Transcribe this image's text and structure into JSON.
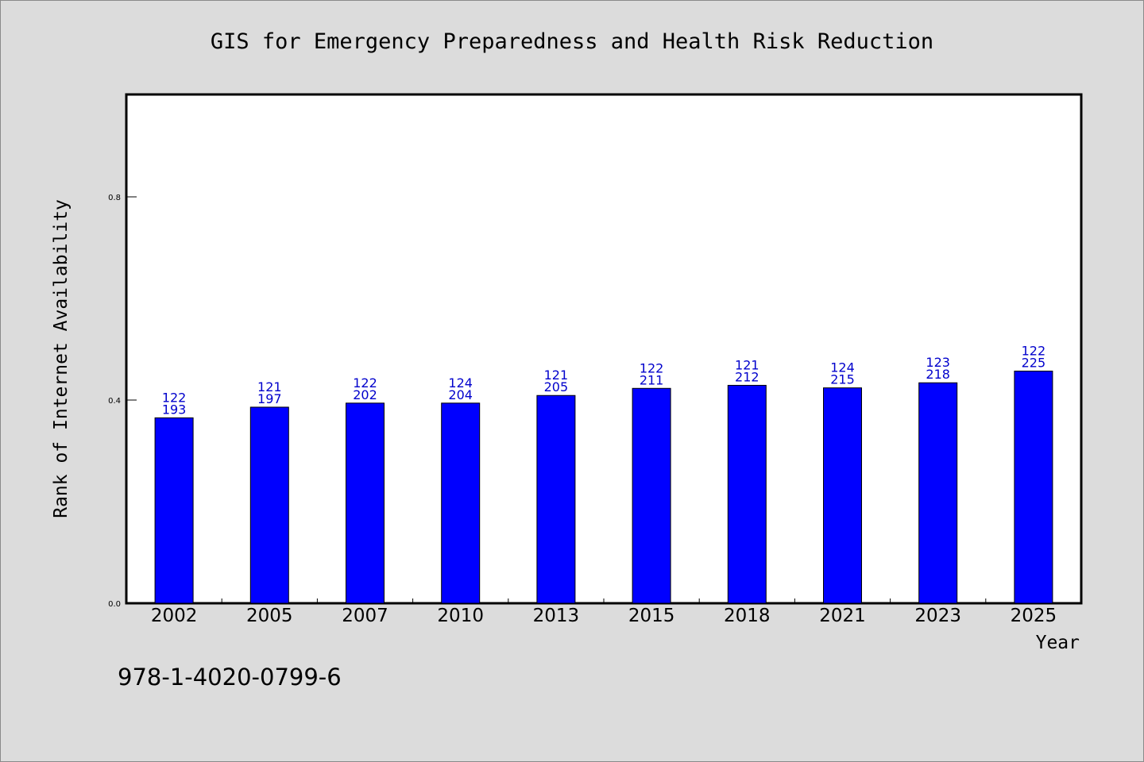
{
  "chart_data": {
    "type": "bar",
    "title": "GIS for Emergency Preparedness and Health Risk Reduction",
    "xlabel": "Year",
    "ylabel": "Rank of Internet Availability",
    "categories": [
      "2002",
      "2005",
      "2007",
      "2010",
      "2013",
      "2015",
      "2018",
      "2021",
      "2023",
      "2025"
    ],
    "values": [
      0.365,
      0.386,
      0.394,
      0.394,
      0.409,
      0.423,
      0.429,
      0.424,
      0.434,
      0.457
    ],
    "label_top": [
      "122",
      "121",
      "122",
      "124",
      "121",
      "122",
      "121",
      "124",
      "123",
      "122"
    ],
    "label_bottom": [
      "193",
      "197",
      "202",
      "204",
      "205",
      "211",
      "212",
      "215",
      "218",
      "225"
    ],
    "ylim": [
      0,
      1.0
    ],
    "yticks": [
      0.0,
      0.4,
      0.8
    ],
    "ytick_labels": [
      "0.0",
      "0.4",
      "0.8"
    ],
    "grid": false,
    "bar_color": "#0000ff",
    "label_color": "#0000cc"
  },
  "footer": {
    "isbn": "978-1-4020-0799-6"
  }
}
